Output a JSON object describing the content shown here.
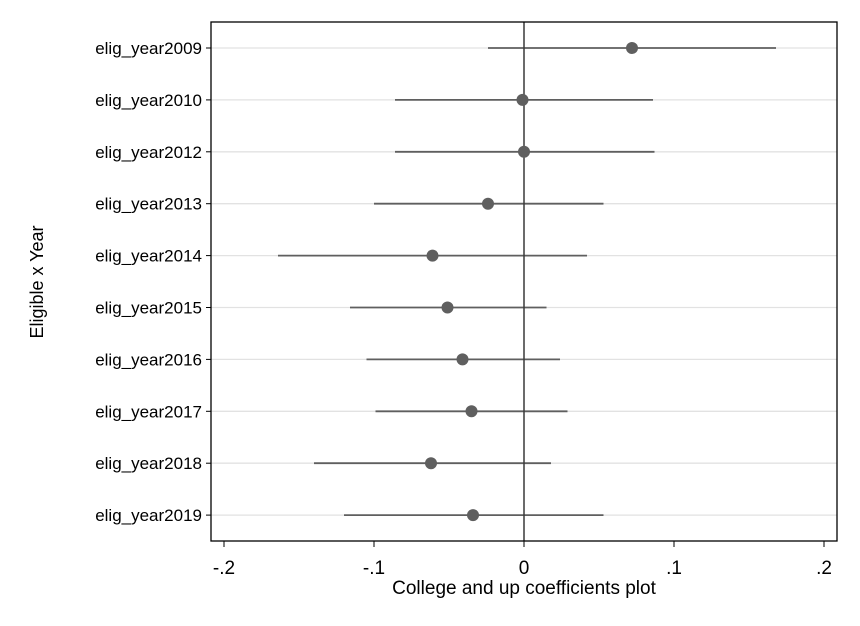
{
  "chart_data": {
    "type": "scatter",
    "subtype": "coefficient-plot",
    "xlabel": "College and up coefficients plot",
    "ylabel": "Eligible x Year",
    "xlim": [
      -0.21,
      0.21
    ],
    "xticks": [
      -0.2,
      -0.1,
      0,
      0.1,
      0.2
    ],
    "xtick_labels": [
      "-.2",
      "-.1",
      "0",
      ".1",
      ".2"
    ],
    "reference_line_x": 0,
    "grid": "horizontal",
    "categories": [
      "elig_year2009",
      "elig_year2010",
      "elig_year2012",
      "elig_year2013",
      "elig_year2014",
      "elig_year2015",
      "elig_year2016",
      "elig_year2017",
      "elig_year2018",
      "elig_year2019"
    ],
    "estimates": [
      0.072,
      -0.001,
      0.0,
      -0.024,
      -0.061,
      -0.051,
      -0.041,
      -0.035,
      -0.062,
      -0.034
    ],
    "ci_low": [
      -0.024,
      -0.086,
      -0.086,
      -0.1,
      -0.164,
      -0.116,
      -0.105,
      -0.099,
      -0.14,
      -0.12
    ],
    "ci_high": [
      0.168,
      0.086,
      0.087,
      0.053,
      0.042,
      0.015,
      0.024,
      0.029,
      0.018,
      0.053
    ],
    "colors": {
      "marker": "#5f5f5f",
      "ci_line": "#5f5f5f",
      "grid": "#e2e2e2",
      "frame": "#000000",
      "zero_line": "#3a3a3a"
    }
  }
}
